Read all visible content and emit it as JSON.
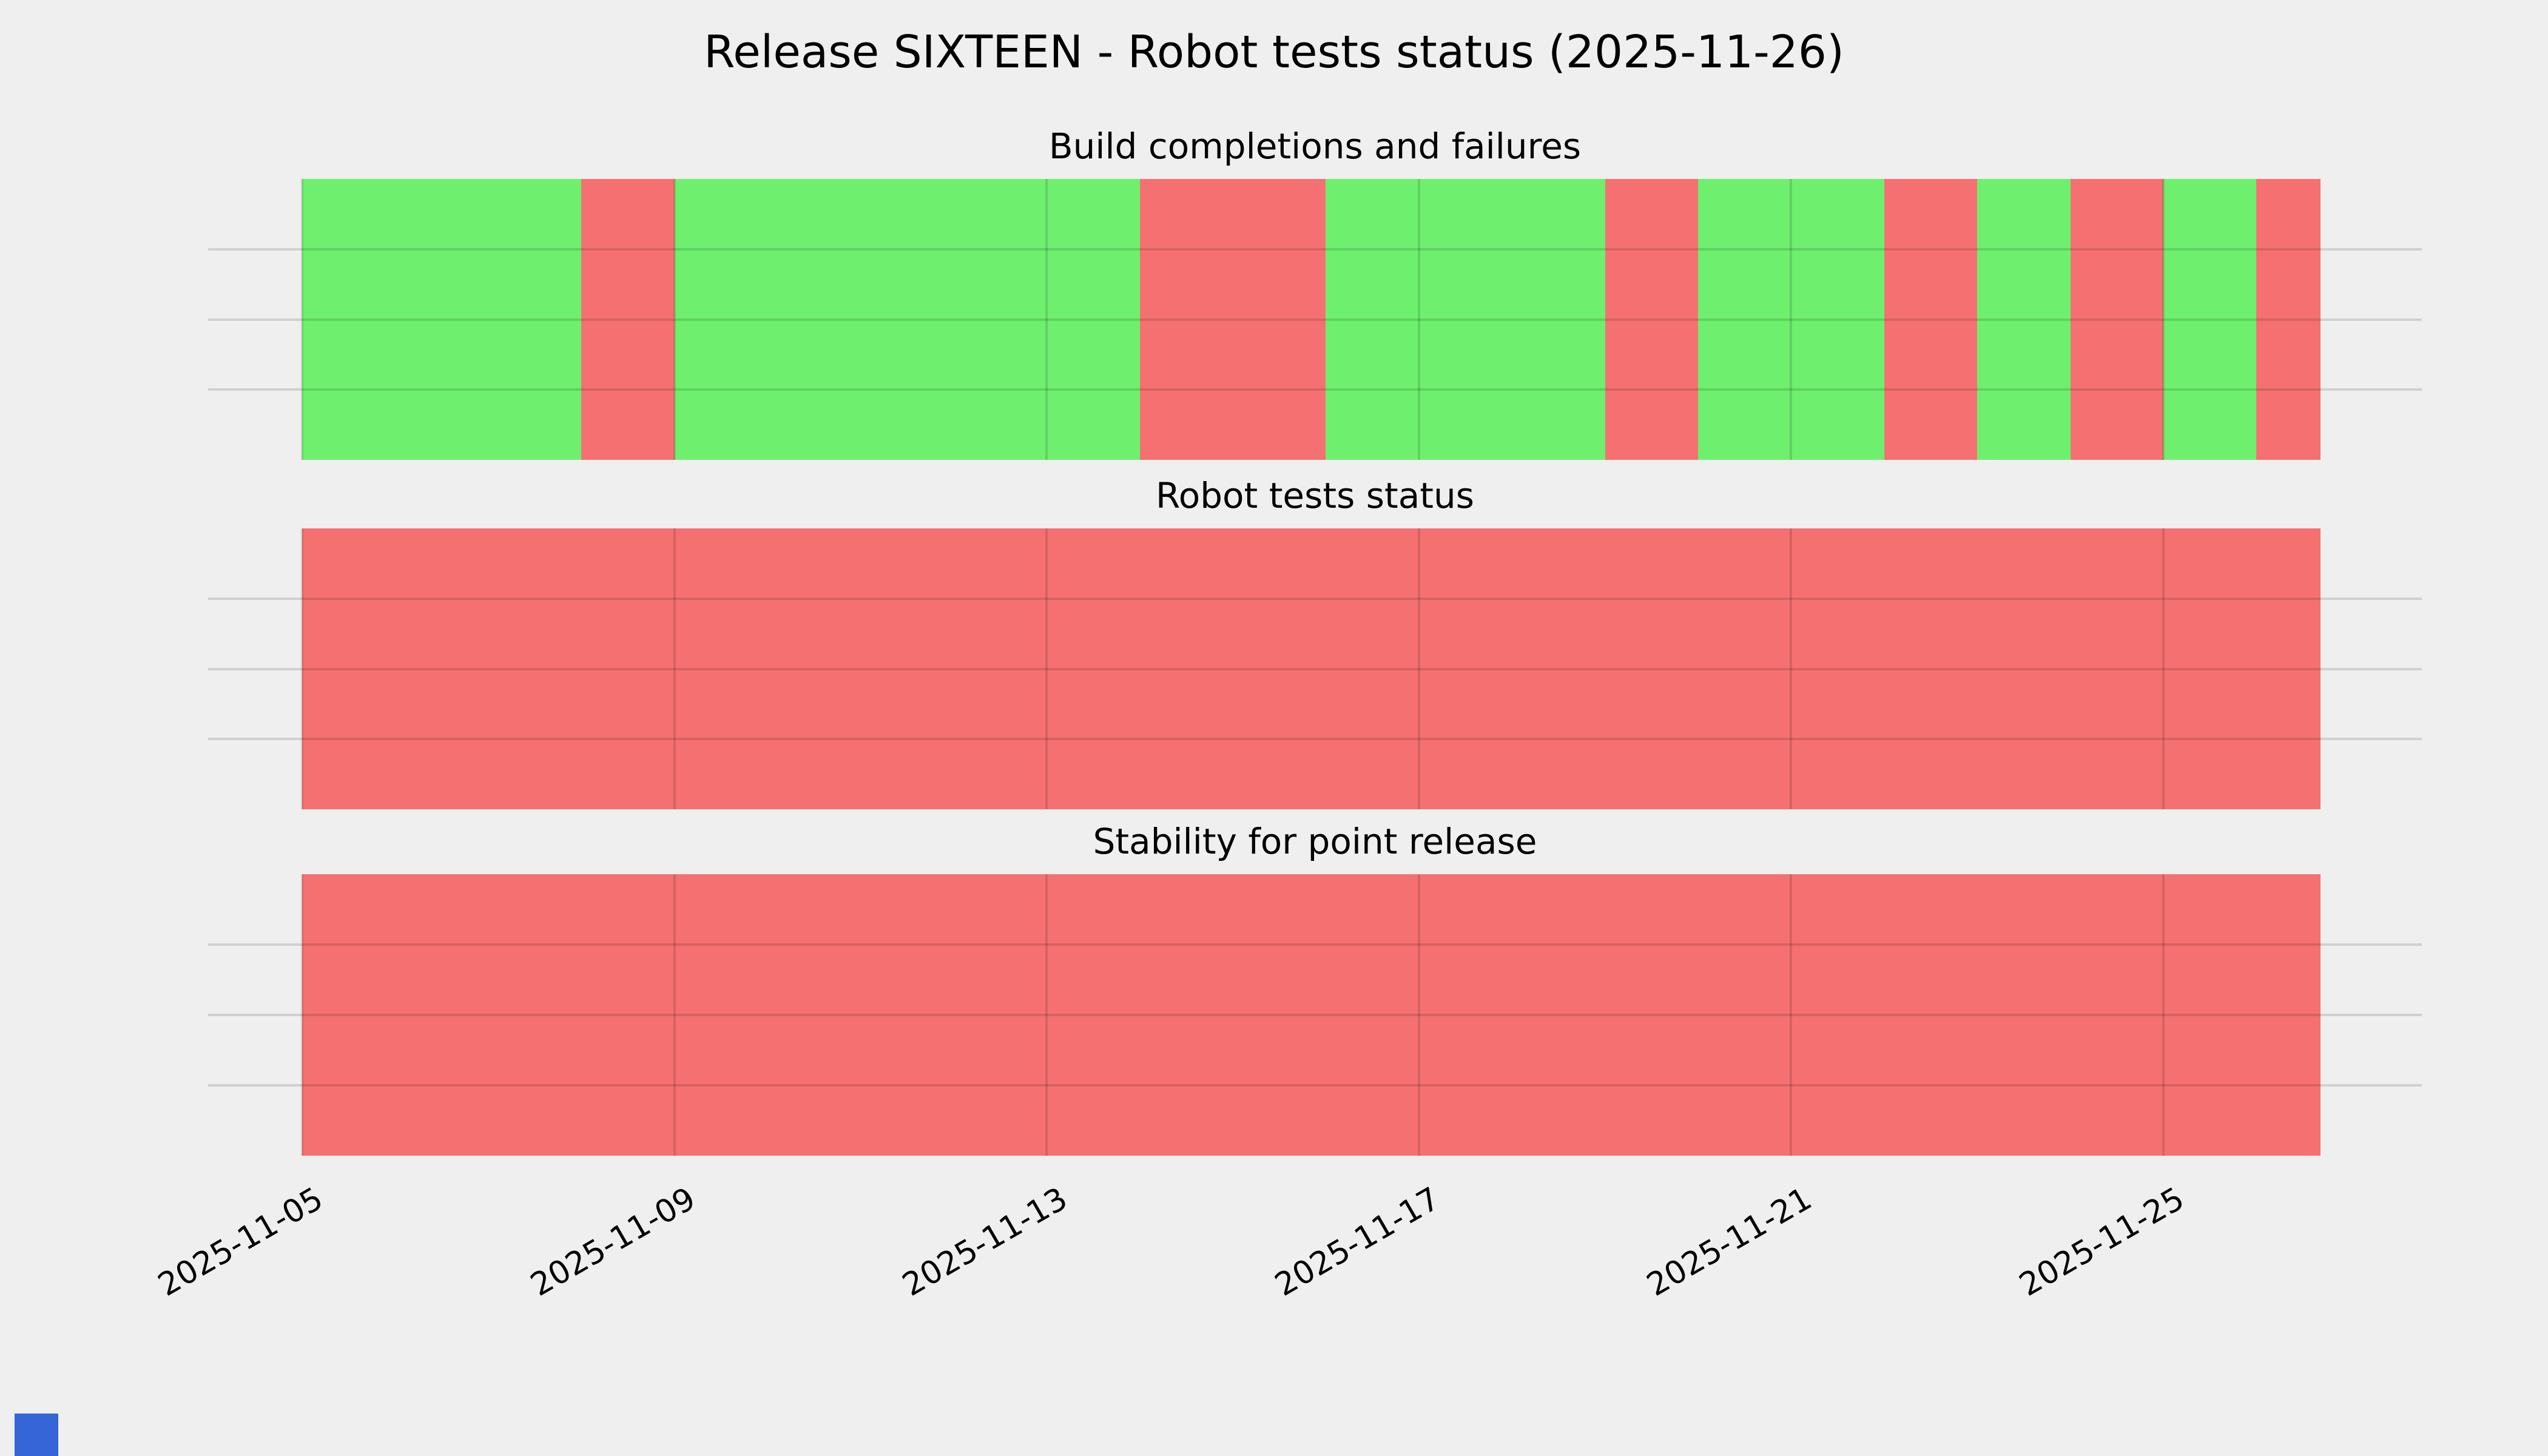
{
  "figure": {
    "title": "Release SIXTEEN - Robot tests status (2025-11-26)",
    "background": "#efefef",
    "text_color": "#000000"
  },
  "status_colors": {
    "pass": "#6ef06e",
    "fail": "#f57171"
  },
  "grid": {
    "overlay_color": "rgba(0,0,0,0.13)",
    "margin_color": "#d0d0d0"
  },
  "x_ticks": [
    "2025-11-05",
    "2025-11-09",
    "2025-11-13",
    "2025-11-17",
    "2025-11-21",
    "2025-11-25"
  ],
  "corner_marker": {
    "color": "#3565d6"
  },
  "chart_data": [
    {
      "type": "status-timeline",
      "title": "Build completions and failures",
      "x_range": [
        "2025-11-05",
        "2025-11-26"
      ],
      "legend_hint": "green = pass, red = fail",
      "days": [
        {
          "date": "2025-11-05",
          "status": "pass"
        },
        {
          "date": "2025-11-06",
          "status": "pass"
        },
        {
          "date": "2025-11-07",
          "status": "pass"
        },
        {
          "date": "2025-11-08",
          "status": "fail"
        },
        {
          "date": "2025-11-09",
          "status": "pass"
        },
        {
          "date": "2025-11-10",
          "status": "pass"
        },
        {
          "date": "2025-11-11",
          "status": "pass"
        },
        {
          "date": "2025-11-12",
          "status": "pass"
        },
        {
          "date": "2025-11-13",
          "status": "pass"
        },
        {
          "date": "2025-11-14",
          "status": "fail"
        },
        {
          "date": "2025-11-15",
          "status": "fail"
        },
        {
          "date": "2025-11-16",
          "status": "pass"
        },
        {
          "date": "2025-11-17",
          "status": "pass"
        },
        {
          "date": "2025-11-18",
          "status": "pass"
        },
        {
          "date": "2025-11-19",
          "status": "fail"
        },
        {
          "date": "2025-11-20",
          "status": "pass"
        },
        {
          "date": "2025-11-21",
          "status": "pass"
        },
        {
          "date": "2025-11-22",
          "status": "fail"
        },
        {
          "date": "2025-11-23",
          "status": "pass"
        },
        {
          "date": "2025-11-24",
          "status": "fail"
        },
        {
          "date": "2025-11-25",
          "status": "pass"
        },
        {
          "date": "2025-11-26",
          "status": "fail",
          "partial": 0.69
        }
      ]
    },
    {
      "type": "status-timeline",
      "title": "Robot tests status",
      "x_range": [
        "2025-11-05",
        "2025-11-26"
      ],
      "days": [
        {
          "date": "2025-11-05",
          "status": "fail"
        },
        {
          "date": "2025-11-06",
          "status": "fail"
        },
        {
          "date": "2025-11-07",
          "status": "fail"
        },
        {
          "date": "2025-11-08",
          "status": "fail"
        },
        {
          "date": "2025-11-09",
          "status": "fail"
        },
        {
          "date": "2025-11-10",
          "status": "fail"
        },
        {
          "date": "2025-11-11",
          "status": "fail"
        },
        {
          "date": "2025-11-12",
          "status": "fail"
        },
        {
          "date": "2025-11-13",
          "status": "fail"
        },
        {
          "date": "2025-11-14",
          "status": "fail"
        },
        {
          "date": "2025-11-15",
          "status": "fail"
        },
        {
          "date": "2025-11-16",
          "status": "fail"
        },
        {
          "date": "2025-11-17",
          "status": "fail"
        },
        {
          "date": "2025-11-18",
          "status": "fail"
        },
        {
          "date": "2025-11-19",
          "status": "fail"
        },
        {
          "date": "2025-11-20",
          "status": "fail"
        },
        {
          "date": "2025-11-21",
          "status": "fail"
        },
        {
          "date": "2025-11-22",
          "status": "fail"
        },
        {
          "date": "2025-11-23",
          "status": "fail"
        },
        {
          "date": "2025-11-24",
          "status": "fail"
        },
        {
          "date": "2025-11-25",
          "status": "fail"
        },
        {
          "date": "2025-11-26",
          "status": "fail",
          "partial": 0.69
        }
      ]
    },
    {
      "type": "status-timeline",
      "title": "Stability for point release",
      "x_range": [
        "2025-11-05",
        "2025-11-26"
      ],
      "days": [
        {
          "date": "2025-11-05",
          "status": "fail"
        },
        {
          "date": "2025-11-06",
          "status": "fail"
        },
        {
          "date": "2025-11-07",
          "status": "fail"
        },
        {
          "date": "2025-11-08",
          "status": "fail"
        },
        {
          "date": "2025-11-09",
          "status": "fail"
        },
        {
          "date": "2025-11-10",
          "status": "fail"
        },
        {
          "date": "2025-11-11",
          "status": "fail"
        },
        {
          "date": "2025-11-12",
          "status": "fail"
        },
        {
          "date": "2025-11-13",
          "status": "fail"
        },
        {
          "date": "2025-11-14",
          "status": "fail"
        },
        {
          "date": "2025-11-15",
          "status": "fail"
        },
        {
          "date": "2025-11-16",
          "status": "fail"
        },
        {
          "date": "2025-11-17",
          "status": "fail"
        },
        {
          "date": "2025-11-18",
          "status": "fail"
        },
        {
          "date": "2025-11-19",
          "status": "fail"
        },
        {
          "date": "2025-11-20",
          "status": "fail"
        },
        {
          "date": "2025-11-21",
          "status": "fail"
        },
        {
          "date": "2025-11-22",
          "status": "fail"
        },
        {
          "date": "2025-11-23",
          "status": "fail"
        },
        {
          "date": "2025-11-24",
          "status": "fail"
        },
        {
          "date": "2025-11-25",
          "status": "fail"
        },
        {
          "date": "2025-11-26",
          "status": "fail",
          "partial": 0.69
        }
      ]
    }
  ]
}
